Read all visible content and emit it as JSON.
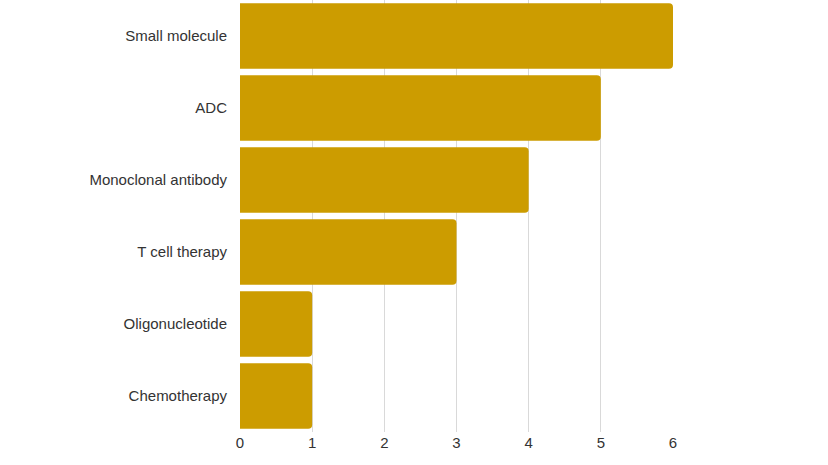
{
  "chart_data": {
    "type": "bar",
    "orientation": "horizontal",
    "categories": [
      "Small molecule",
      "ADC",
      "Monoclonal antibody",
      "T cell therapy",
      "Oligonucleotide",
      "Chemotherapy"
    ],
    "values": [
      6,
      5,
      4,
      3,
      1,
      1
    ],
    "color": "#cc9c00",
    "xlim": [
      0,
      6
    ],
    "xticks": [
      0,
      1,
      2,
      3,
      4,
      5,
      6
    ],
    "grid": true
  }
}
